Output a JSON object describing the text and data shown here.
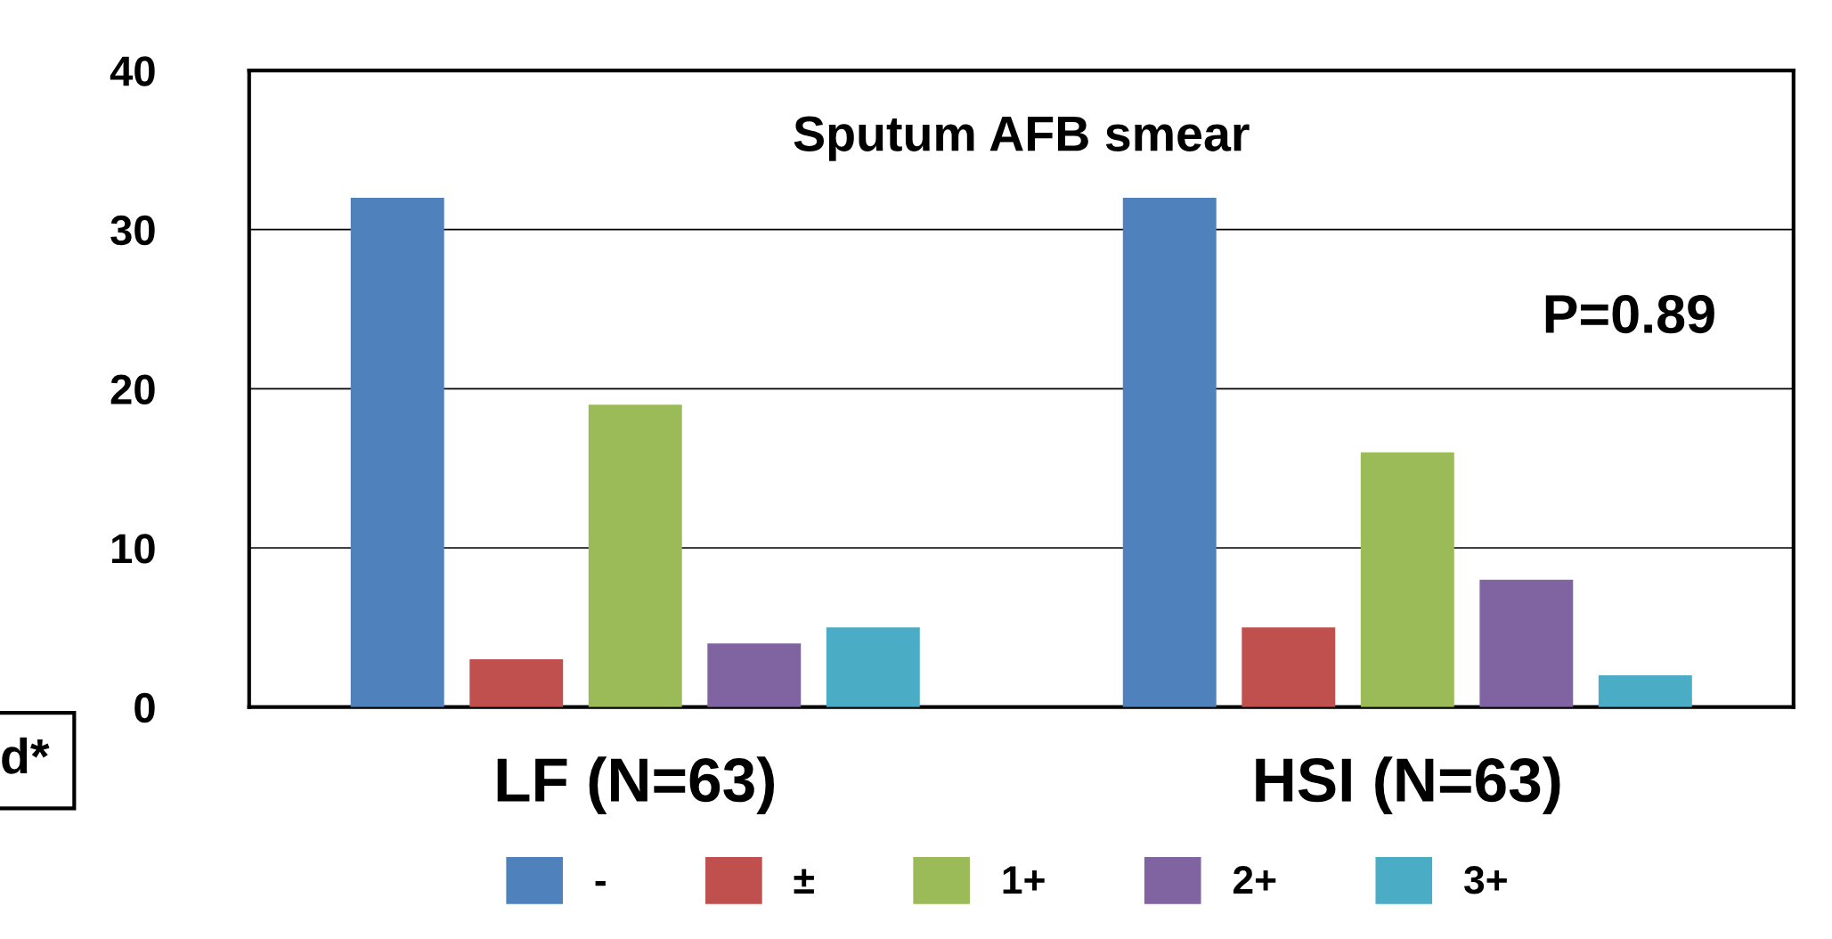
{
  "chart_data": {
    "type": "bar",
    "title": "Sputum AFB smear",
    "categories": [
      "LF (N=63)",
      "HSI (N=63)"
    ],
    "series": [
      {
        "name": "-",
        "color": "#4f81bd",
        "values": [
          32,
          32
        ]
      },
      {
        "name": "±",
        "color": "#c0504d",
        "values": [
          3,
          5
        ]
      },
      {
        "name": "1+",
        "color": "#9bbb59",
        "values": [
          19,
          16
        ]
      },
      {
        "name": "2+",
        "color": "#8064a2",
        "values": [
          4,
          8
        ]
      },
      {
        "name": "3+",
        "color": "#4bacc6",
        "values": [
          5,
          2
        ]
      }
    ],
    "ylim": [
      0,
      40
    ],
    "yticks": [
      0,
      10,
      20,
      30,
      40
    ],
    "grid": "y",
    "legend": "bottom",
    "annotations": [
      "P=0.89",
      "d*"
    ]
  }
}
